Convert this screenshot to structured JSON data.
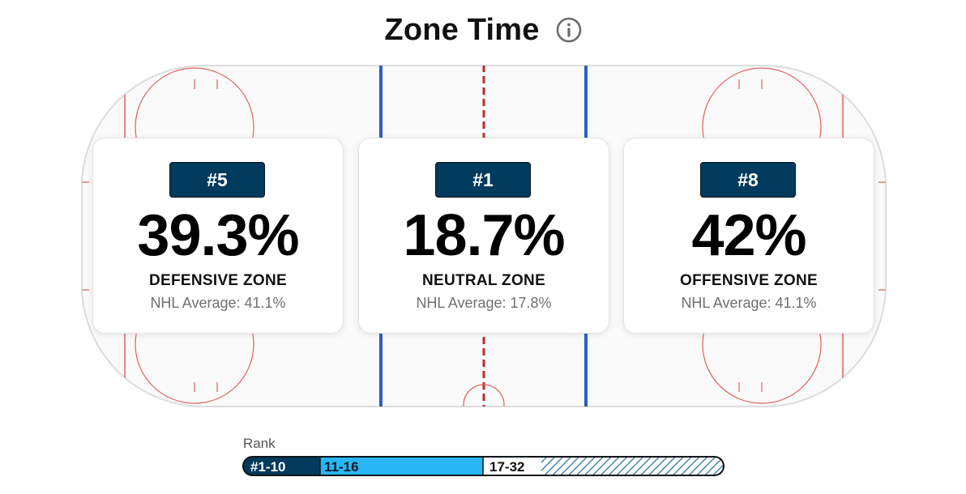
{
  "header": {
    "title": "Zone Time",
    "info_icon": "info-icon"
  },
  "zones": [
    {
      "rank": "#5",
      "percent": "39.3%",
      "label": "DEFENSIVE ZONE",
      "nhl_average": "NHL Average: 41.1%"
    },
    {
      "rank": "#1",
      "percent": "18.7%",
      "label": "NEUTRAL ZONE",
      "nhl_average": "NHL Average: 17.8%"
    },
    {
      "rank": "#8",
      "percent": "42%",
      "label": "OFFENSIVE ZONE",
      "nhl_average": "NHL Average: 41.1%"
    }
  ],
  "legend": {
    "title": "Rank",
    "segments": [
      {
        "label": "#1-10",
        "color": "#003a5c"
      },
      {
        "label": "11-16",
        "color": "#29b6f6"
      },
      {
        "label": "17-32",
        "color": "#ffffff",
        "pattern": "hatched"
      }
    ]
  },
  "colors": {
    "badge": "#003a5c",
    "blue_line": "#2f5fc4",
    "red_line": "#c62828",
    "rink_board": "#e4e4e4"
  }
}
